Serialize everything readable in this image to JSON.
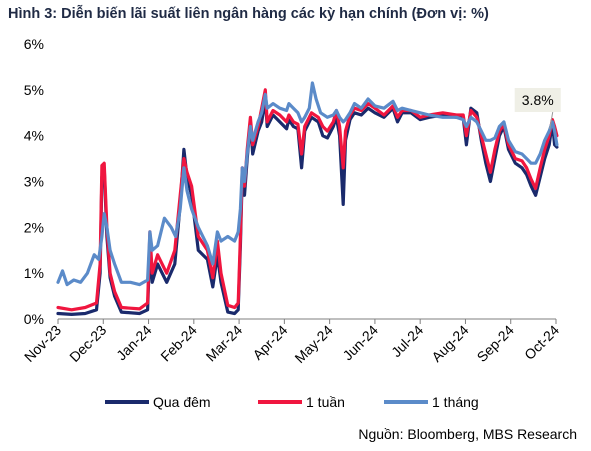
{
  "title": "Hình 3: Diễn biến lãi suất liên ngân hàng các kỳ hạn chính (Đơn vị: %)",
  "source": "Nguồn: Bloomberg, MBS Research",
  "chart_data": {
    "type": "line",
    "title": "Hình 3: Diễn biến lãi suất liên ngân hàng các kỳ hạn chính (Đơn vị: %)",
    "xlabel": "",
    "ylabel": "",
    "ylim": [
      0,
      6
    ],
    "y_ticks": [
      "0%",
      "1%",
      "2%",
      "3%",
      "4%",
      "5%",
      "6%"
    ],
    "x_range": [
      0,
      11
    ],
    "x_ticks": [
      "Nov-23",
      "Dec-23",
      "Jan-24",
      "Feb-24",
      "Mar-24",
      "Apr-24",
      "May-24",
      "Jun-24",
      "Jul-24",
      "Aug-24",
      "Sep-24",
      "Oct-24"
    ],
    "grid": false,
    "legend_position": "bottom",
    "annotation": {
      "text": "3.8%",
      "x": 10.95,
      "y": 4.1
    },
    "series": [
      {
        "name": "Qua đêm",
        "color": "#1a2a6c",
        "points": [
          [
            0,
            0.12
          ],
          [
            0.3,
            0.1
          ],
          [
            0.6,
            0.12
          ],
          [
            0.85,
            0.2
          ],
          [
            0.93,
            1.0
          ],
          [
            0.97,
            3.1
          ],
          [
            1.02,
            3.3
          ],
          [
            1.08,
            1.8
          ],
          [
            1.15,
            0.9
          ],
          [
            1.25,
            0.5
          ],
          [
            1.4,
            0.15
          ],
          [
            1.8,
            0.12
          ],
          [
            1.98,
            0.2
          ],
          [
            2.03,
            1.6
          ],
          [
            2.08,
            0.8
          ],
          [
            2.2,
            1.2
          ],
          [
            2.4,
            0.8
          ],
          [
            2.58,
            1.2
          ],
          [
            2.7,
            2.5
          ],
          [
            2.78,
            3.7
          ],
          [
            2.85,
            3.1
          ],
          [
            2.95,
            2.7
          ],
          [
            3.1,
            1.5
          ],
          [
            3.3,
            1.3
          ],
          [
            3.42,
            0.7
          ],
          [
            3.52,
            1.4
          ],
          [
            3.6,
            0.8
          ],
          [
            3.75,
            0.15
          ],
          [
            3.9,
            0.12
          ],
          [
            3.98,
            0.2
          ],
          [
            4.03,
            1.6
          ],
          [
            4.07,
            3.2
          ],
          [
            4.12,
            2.7
          ],
          [
            4.18,
            3.5
          ],
          [
            4.25,
            4.3
          ],
          [
            4.3,
            3.6
          ],
          [
            4.42,
            4.1
          ],
          [
            4.5,
            4.3
          ],
          [
            4.58,
            4.8
          ],
          [
            4.62,
            4.2
          ],
          [
            4.75,
            4.45
          ],
          [
            4.9,
            4.3
          ],
          [
            5.05,
            4.15
          ],
          [
            5.1,
            4.35
          ],
          [
            5.2,
            4.2
          ],
          [
            5.3,
            4.15
          ],
          [
            5.38,
            3.3
          ],
          [
            5.45,
            4.1
          ],
          [
            5.6,
            4.4
          ],
          [
            5.75,
            4.3
          ],
          [
            5.85,
            4.0
          ],
          [
            5.95,
            3.95
          ],
          [
            6.08,
            4.2
          ],
          [
            6.15,
            4.4
          ],
          [
            6.22,
            4.0
          ],
          [
            6.3,
            2.5
          ],
          [
            6.35,
            3.9
          ],
          [
            6.45,
            4.35
          ],
          [
            6.55,
            4.5
          ],
          [
            6.7,
            4.45
          ],
          [
            6.85,
            4.6
          ],
          [
            7.0,
            4.5
          ],
          [
            7.2,
            4.4
          ],
          [
            7.4,
            4.6
          ],
          [
            7.5,
            4.3
          ],
          [
            7.6,
            4.5
          ],
          [
            7.8,
            4.5
          ],
          [
            8.0,
            4.35
          ],
          [
            8.2,
            4.4
          ],
          [
            8.5,
            4.45
          ],
          [
            8.8,
            4.4
          ],
          [
            8.95,
            4.4
          ],
          [
            9.02,
            3.8
          ],
          [
            9.12,
            4.6
          ],
          [
            9.25,
            4.5
          ],
          [
            9.35,
            3.9
          ],
          [
            9.45,
            3.4
          ],
          [
            9.55,
            3.0
          ],
          [
            9.65,
            3.5
          ],
          [
            9.75,
            4.0
          ],
          [
            9.85,
            4.2
          ],
          [
            9.95,
            3.7
          ],
          [
            10.1,
            3.4
          ],
          [
            10.25,
            3.3
          ],
          [
            10.35,
            3.15
          ],
          [
            10.45,
            2.9
          ],
          [
            10.55,
            2.7
          ],
          [
            10.65,
            3.1
          ],
          [
            10.75,
            3.5
          ],
          [
            10.85,
            3.8
          ],
          [
            10.92,
            4.3
          ],
          [
            10.97,
            3.8
          ],
          [
            11.02,
            3.75
          ]
        ]
      },
      {
        "name": "1 tuần",
        "color": "#f0163f",
        "points": [
          [
            0,
            0.25
          ],
          [
            0.3,
            0.2
          ],
          [
            0.6,
            0.25
          ],
          [
            0.85,
            0.35
          ],
          [
            0.93,
            1.2
          ],
          [
            0.97,
            3.35
          ],
          [
            1.02,
            3.4
          ],
          [
            1.08,
            2.0
          ],
          [
            1.15,
            1.0
          ],
          [
            1.25,
            0.6
          ],
          [
            1.4,
            0.25
          ],
          [
            1.8,
            0.22
          ],
          [
            1.98,
            0.35
          ],
          [
            2.03,
            1.9
          ],
          [
            2.08,
            1.0
          ],
          [
            2.2,
            1.4
          ],
          [
            2.4,
            1.0
          ],
          [
            2.58,
            1.5
          ],
          [
            2.7,
            2.7
          ],
          [
            2.78,
            3.5
          ],
          [
            2.85,
            3.2
          ],
          [
            2.95,
            2.9
          ],
          [
            3.1,
            1.8
          ],
          [
            3.3,
            1.5
          ],
          [
            3.42,
            0.9
          ],
          [
            3.52,
            1.7
          ],
          [
            3.6,
            1.0
          ],
          [
            3.75,
            0.3
          ],
          [
            3.9,
            0.25
          ],
          [
            3.98,
            0.35
          ],
          [
            4.03,
            1.8
          ],
          [
            4.07,
            3.3
          ],
          [
            4.12,
            2.9
          ],
          [
            4.18,
            3.7
          ],
          [
            4.25,
            4.4
          ],
          [
            4.3,
            3.8
          ],
          [
            4.42,
            4.2
          ],
          [
            4.5,
            4.6
          ],
          [
            4.58,
            5.0
          ],
          [
            4.62,
            4.3
          ],
          [
            4.75,
            4.55
          ],
          [
            4.9,
            4.45
          ],
          [
            5.05,
            4.3
          ],
          [
            5.1,
            4.45
          ],
          [
            5.2,
            4.3
          ],
          [
            5.3,
            4.25
          ],
          [
            5.38,
            3.6
          ],
          [
            5.45,
            4.2
          ],
          [
            5.6,
            4.5
          ],
          [
            5.75,
            4.4
          ],
          [
            5.85,
            4.2
          ],
          [
            5.95,
            4.1
          ],
          [
            6.08,
            4.3
          ],
          [
            6.15,
            4.55
          ],
          [
            6.22,
            4.2
          ],
          [
            6.3,
            3.3
          ],
          [
            6.35,
            4.1
          ],
          [
            6.45,
            4.45
          ],
          [
            6.55,
            4.6
          ],
          [
            6.7,
            4.55
          ],
          [
            6.85,
            4.7
          ],
          [
            7.0,
            4.6
          ],
          [
            7.2,
            4.45
          ],
          [
            7.4,
            4.65
          ],
          [
            7.5,
            4.4
          ],
          [
            7.6,
            4.55
          ],
          [
            7.8,
            4.55
          ],
          [
            8.0,
            4.4
          ],
          [
            8.2,
            4.45
          ],
          [
            8.5,
            4.5
          ],
          [
            8.8,
            4.45
          ],
          [
            8.95,
            4.45
          ],
          [
            9.02,
            4.0
          ],
          [
            9.12,
            4.55
          ],
          [
            9.25,
            4.4
          ],
          [
            9.35,
            4.0
          ],
          [
            9.45,
            3.6
          ],
          [
            9.55,
            3.2
          ],
          [
            9.65,
            3.7
          ],
          [
            9.75,
            4.1
          ],
          [
            9.85,
            4.25
          ],
          [
            9.95,
            3.8
          ],
          [
            10.1,
            3.5
          ],
          [
            10.25,
            3.45
          ],
          [
            10.35,
            3.3
          ],
          [
            10.45,
            3.05
          ],
          [
            10.55,
            2.85
          ],
          [
            10.65,
            3.3
          ],
          [
            10.75,
            3.7
          ],
          [
            10.85,
            4.0
          ],
          [
            10.92,
            4.35
          ],
          [
            10.97,
            4.2
          ],
          [
            11.02,
            4.0
          ]
        ]
      },
      {
        "name": "1 tháng",
        "color": "#5b8bc9",
        "points": [
          [
            0,
            0.8
          ],
          [
            0.1,
            1.05
          ],
          [
            0.2,
            0.75
          ],
          [
            0.35,
            0.85
          ],
          [
            0.5,
            0.8
          ],
          [
            0.65,
            1.0
          ],
          [
            0.8,
            1.4
          ],
          [
            0.9,
            1.3
          ],
          [
            0.97,
            1.8
          ],
          [
            1.02,
            2.3
          ],
          [
            1.08,
            2.0
          ],
          [
            1.15,
            1.5
          ],
          [
            1.25,
            1.2
          ],
          [
            1.4,
            0.8
          ],
          [
            1.6,
            0.8
          ],
          [
            1.8,
            0.75
          ],
          [
            1.98,
            0.85
          ],
          [
            2.03,
            1.9
          ],
          [
            2.08,
            1.5
          ],
          [
            2.2,
            1.6
          ],
          [
            2.35,
            2.2
          ],
          [
            2.5,
            2.0
          ],
          [
            2.6,
            1.8
          ],
          [
            2.7,
            2.4
          ],
          [
            2.78,
            3.3
          ],
          [
            2.85,
            2.8
          ],
          [
            2.95,
            2.4
          ],
          [
            3.1,
            2.0
          ],
          [
            3.3,
            1.6
          ],
          [
            3.42,
            1.2
          ],
          [
            3.52,
            1.9
          ],
          [
            3.6,
            1.7
          ],
          [
            3.75,
            1.8
          ],
          [
            3.9,
            1.7
          ],
          [
            3.98,
            1.9
          ],
          [
            4.03,
            2.4
          ],
          [
            4.07,
            3.3
          ],
          [
            4.12,
            3.0
          ],
          [
            4.18,
            3.6
          ],
          [
            4.25,
            4.2
          ],
          [
            4.3,
            3.9
          ],
          [
            4.42,
            4.3
          ],
          [
            4.5,
            4.5
          ],
          [
            4.58,
            4.9
          ],
          [
            4.62,
            4.6
          ],
          [
            4.75,
            4.7
          ],
          [
            4.9,
            4.6
          ],
          [
            5.05,
            4.55
          ],
          [
            5.1,
            4.7
          ],
          [
            5.2,
            4.6
          ],
          [
            5.3,
            4.5
          ],
          [
            5.38,
            4.3
          ],
          [
            5.45,
            4.4
          ],
          [
            5.55,
            4.6
          ],
          [
            5.62,
            5.15
          ],
          [
            5.7,
            4.8
          ],
          [
            5.8,
            4.5
          ],
          [
            5.95,
            4.4
          ],
          [
            6.08,
            4.45
          ],
          [
            6.15,
            4.55
          ],
          [
            6.22,
            4.4
          ],
          [
            6.3,
            4.3
          ],
          [
            6.35,
            4.35
          ],
          [
            6.45,
            4.5
          ],
          [
            6.55,
            4.7
          ],
          [
            6.7,
            4.6
          ],
          [
            6.85,
            4.8
          ],
          [
            7.0,
            4.65
          ],
          [
            7.2,
            4.6
          ],
          [
            7.4,
            4.75
          ],
          [
            7.5,
            4.55
          ],
          [
            7.6,
            4.6
          ],
          [
            7.8,
            4.55
          ],
          [
            8.0,
            4.5
          ],
          [
            8.2,
            4.45
          ],
          [
            8.5,
            4.4
          ],
          [
            8.8,
            4.4
          ],
          [
            8.95,
            4.35
          ],
          [
            9.02,
            4.2
          ],
          [
            9.12,
            4.4
          ],
          [
            9.25,
            4.3
          ],
          [
            9.35,
            4.1
          ],
          [
            9.45,
            3.9
          ],
          [
            9.55,
            3.9
          ],
          [
            9.65,
            3.95
          ],
          [
            9.75,
            4.2
          ],
          [
            9.85,
            4.3
          ],
          [
            9.95,
            3.9
          ],
          [
            10.1,
            3.65
          ],
          [
            10.25,
            3.6
          ],
          [
            10.35,
            3.5
          ],
          [
            10.45,
            3.4
          ],
          [
            10.55,
            3.4
          ],
          [
            10.65,
            3.6
          ],
          [
            10.75,
            3.9
          ],
          [
            10.85,
            4.1
          ],
          [
            10.92,
            4.3
          ],
          [
            10.97,
            4.1
          ],
          [
            11.02,
            3.8
          ]
        ]
      }
    ]
  }
}
